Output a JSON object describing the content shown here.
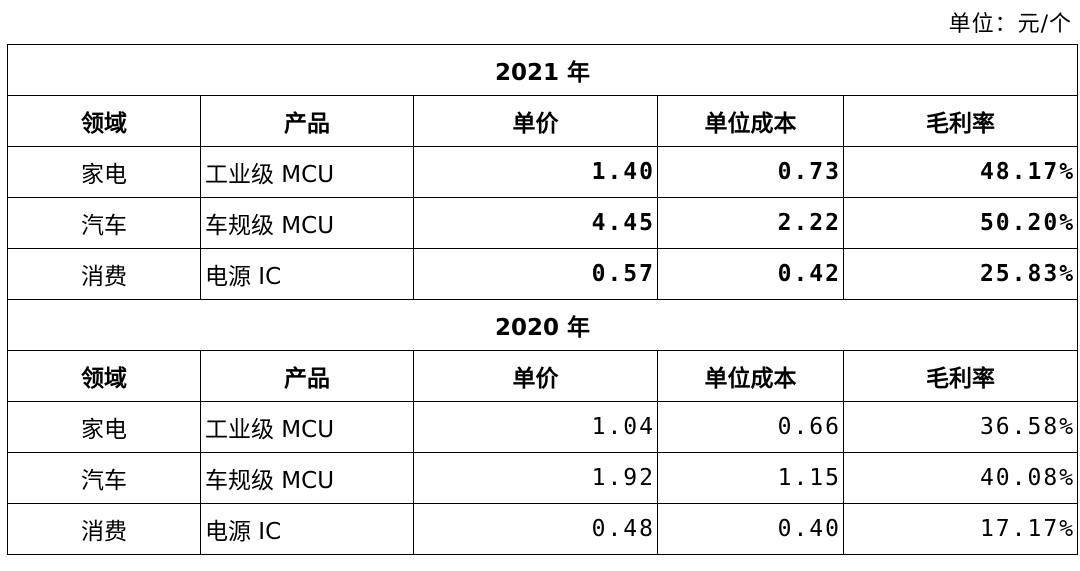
{
  "unit": "单位：元/个",
  "tables": [
    {
      "year": "2021 年",
      "header": [
        "领域",
        "产品",
        "单价",
        "单位成本",
        "毛利率"
      ],
      "rows": [
        [
          "家电",
          "工业级 MCU",
          "1.40",
          "0.73",
          "48.17%"
        ],
        [
          "汽车",
          "车规级 MCU",
          "4.45",
          "2.22",
          "50.20%"
        ],
        [
          "消费",
          "电源 IC",
          "0.57",
          "0.42",
          "25.83%"
        ]
      ]
    },
    {
      "year": "2020 年",
      "header": [
        "领域",
        "产品",
        "单价",
        "单位成本",
        "毛利率"
      ],
      "rows": [
        [
          "家电",
          "工业级 MCU",
          "1.04",
          "0.66",
          "36.58%"
        ],
        [
          "汽车",
          "车规级 MCU",
          "1.92",
          "1.15",
          "40.08%"
        ],
        [
          "消费",
          "电源 IC",
          "0.48",
          "0.40",
          "17.17%"
        ]
      ]
    }
  ]
}
